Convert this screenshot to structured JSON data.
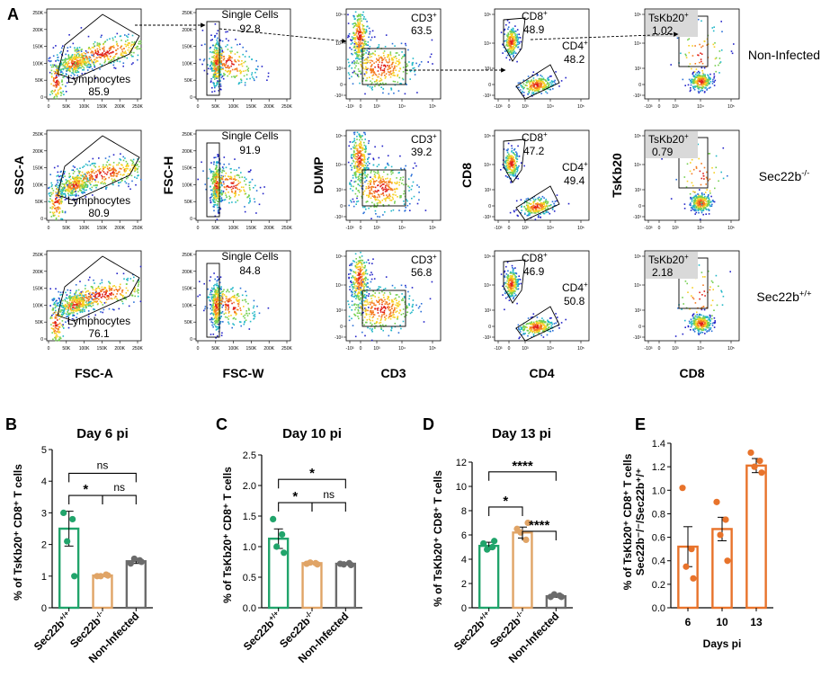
{
  "figure": {
    "panel_letters": {
      "A": "A",
      "B": "B",
      "C": "C",
      "D": "D",
      "E": "E"
    },
    "row_labels": [
      "Non-Infected",
      "Sec22b",
      "Sec22b"
    ],
    "row_label_sups": [
      "",
      "-/-",
      "+/+"
    ],
    "col_xlabels": [
      "FSC-A",
      "FSC-W",
      "CD3",
      "CD4",
      "CD8"
    ],
    "col_ylabels": [
      "SSC-A",
      "FSC-H",
      "DUMP",
      "CD8",
      "TsKb20"
    ],
    "flow_rows": [
      {
        "lymph_label": "Lymphocytes",
        "lymph": "85.9",
        "single_label": "Single Cells",
        "single": "92.8",
        "cd3_label": "CD3",
        "cd3_sup": "+",
        "cd3": "63.5",
        "cd8_label": "CD8",
        "cd8_sup": "+",
        "cd8": "48.9",
        "cd4_label": "CD4",
        "cd4_sup": "+",
        "cd4": "48.2",
        "tskb_label": "TsKb20",
        "tskb_sup": "+",
        "tskb": "1.02"
      },
      {
        "lymph_label": "Lymphocytes",
        "lymph": "80.9",
        "single_label": "Single Cells",
        "single": "91.9",
        "cd3_label": "CD3",
        "cd3_sup": "+",
        "cd3": "39.2",
        "cd8_label": "CD8",
        "cd8_sup": "+",
        "cd8": "47.2",
        "cd4_label": "CD4",
        "cd4_sup": "+",
        "cd4": "49.4",
        "tskb_label": "TsKb20",
        "tskb_sup": "+",
        "tskb": "0.79"
      },
      {
        "lymph_label": "Lymphocytes",
        "lymph": "76.1",
        "single_label": "Single Cells",
        "single": "84.8",
        "cd3_label": "CD3",
        "cd3_sup": "+",
        "cd3": "56.8",
        "cd8_label": "CD8",
        "cd8_sup": "+",
        "cd8": "46.9",
        "cd4_label": "CD4",
        "cd4_sup": "+",
        "cd4": "50.8",
        "tskb_label": "TsKb20",
        "tskb_sup": "+",
        "tskb": "2.18"
      }
    ],
    "linear_ticks": [
      "0",
      "50K",
      "100K",
      "150K",
      "200K",
      "250K"
    ],
    "log_ticks": [
      "-10³",
      "0",
      "10³",
      "10⁴",
      "10⁵"
    ]
  },
  "chart_data": [
    {
      "panel": "B",
      "type": "bar",
      "title": "Day 6 pi",
      "ylabel": "% of TsKb20⁺ CD8⁺ T cells",
      "ylim": [
        0,
        5
      ],
      "yticks": [
        0,
        1,
        2,
        3,
        4,
        5
      ],
      "categories": [
        "Sec22b+/+",
        "Sec22b-/-",
        "Non-Infected"
      ],
      "category_base": [
        "Sec22b",
        "Sec22b",
        "Non-Infected"
      ],
      "category_sup": [
        "+/+",
        "-/-",
        ""
      ],
      "values": [
        2.5,
        1.02,
        1.47
      ],
      "sem": [
        0.55,
        0.03,
        0.07
      ],
      "points": [
        [
          3.0,
          2.8,
          2.1,
          1.0
        ],
        [
          1.0,
          1.05,
          1.0,
          1.02
        ],
        [
          1.4,
          1.5,
          1.55,
          1.45
        ]
      ],
      "colors": [
        "#21a46b",
        "#e0a466",
        "#6b6b6b"
      ],
      "significance": [
        {
          "from": 0,
          "to": 2,
          "label": "ns",
          "y": 4.25
        },
        {
          "from": 0,
          "to": 1,
          "label": "*",
          "y": 3.55
        },
        {
          "from": 1,
          "to": 2,
          "label": "ns",
          "y": 3.55
        }
      ]
    },
    {
      "panel": "C",
      "type": "bar",
      "title": "Day 10 pi",
      "ylabel": "% of TsKb20⁺ CD8⁺ T cells",
      "ylim": [
        0,
        2.5
      ],
      "yticks": [
        0.0,
        0.5,
        1.0,
        1.5,
        2.0,
        2.5
      ],
      "categories": [
        "Sec22b+/+",
        "Sec22b-/-",
        "Non-Infected"
      ],
      "category_base": [
        "Sec22b",
        "Sec22b",
        "Non-Infected"
      ],
      "category_sup": [
        "+/+",
        "-/-",
        ""
      ],
      "values": [
        1.13,
        0.73,
        0.72
      ],
      "sem": [
        0.16,
        0.015,
        0.015
      ],
      "points": [
        [
          1.45,
          1.2,
          1.0,
          0.9
        ],
        [
          0.72,
          0.73,
          0.74,
          0.71
        ],
        [
          0.72,
          0.73,
          0.71,
          0.7
        ]
      ],
      "colors": [
        "#21a46b",
        "#e0a466",
        "#6b6b6b"
      ],
      "significance": [
        {
          "from": 0,
          "to": 2,
          "label": "*",
          "y": 2.1
        },
        {
          "from": 0,
          "to": 1,
          "label": "*",
          "y": 1.72
        },
        {
          "from": 1,
          "to": 2,
          "label": "ns",
          "y": 1.72
        }
      ]
    },
    {
      "panel": "D",
      "type": "bar",
      "title": "Day 13 pi",
      "ylabel": "% of TsKb20⁺ CD8⁺ T cells",
      "ylim": [
        0,
        12
      ],
      "yticks": [
        0,
        2,
        4,
        6,
        8,
        10,
        12
      ],
      "categories": [
        "Sec22b+/+",
        "Sec22b-/-",
        "Non-Infected"
      ],
      "category_base": [
        "Sec22b",
        "Sec22b",
        "Non-Infected"
      ],
      "category_sup": [
        "+/+",
        "-/-",
        ""
      ],
      "values": [
        5.1,
        6.2,
        0.95
      ],
      "sem": [
        0.3,
        0.45,
        0.08
      ],
      "points": [
        [
          5.3,
          5.0,
          4.8,
          5.5
        ],
        [
          6.5,
          5.6,
          6.2,
          7.0
        ],
        [
          0.9,
          1.0,
          1.1,
          0.9
        ]
      ],
      "colors": [
        "#21a46b",
        "#e0a466",
        "#6b6b6b"
      ],
      "significance": [
        {
          "from": 0,
          "to": 2,
          "label": "****",
          "y": 11.2
        },
        {
          "from": 0,
          "to": 1,
          "label": "*",
          "y": 8.3
        },
        {
          "from": 1,
          "to": 2,
          "label": "****",
          "y": 6.3
        }
      ]
    },
    {
      "panel": "E",
      "type": "bar",
      "title": "",
      "ylabel": "% of TsKb20⁺ CD8⁺ T cells Sec22b⁻/⁻/Sec22b⁺/⁺",
      "xlabel": "Days pi",
      "ylim": [
        0,
        1.4
      ],
      "yticks": [
        0.0,
        0.2,
        0.4,
        0.6,
        0.8,
        1.0,
        1.2,
        1.4
      ],
      "categories": [
        "6",
        "10",
        "13"
      ],
      "values": [
        0.52,
        0.67,
        1.21
      ],
      "sem": [
        0.17,
        0.1,
        0.06
      ],
      "points": [
        [
          1.02,
          0.5,
          0.35,
          0.25
        ],
        [
          0.9,
          0.75,
          0.62,
          0.4
        ],
        [
          1.32,
          1.25,
          1.2,
          1.15
        ]
      ],
      "colors": [
        "#e8732b",
        "#e8732b",
        "#e8732b"
      ],
      "significance": []
    }
  ]
}
